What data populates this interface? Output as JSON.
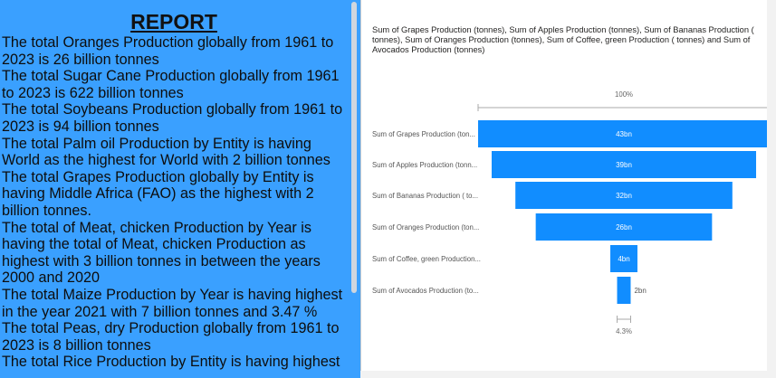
{
  "report": {
    "title": "REPORT",
    "paragraphs": [
      "The total Oranges Production globally from 1961 to 2023 is 26 billion tonnes",
      "The total Sugar Cane Production globally from 1961 to 2023 is 622 billion tonnes",
      "The total Soybeans Production globally from 1961 to 2023 is 94 billion tonnes",
      "The total Palm oil Production by Entity is having World as the highest for World with 2 billion tonnes",
      "The total Grapes Production globally by Entity is having Middle Africa (FAO) as the highest with 2 billion tonnes.",
      "The total of Meat, chicken Production by Year is having the total of Meat, chicken Production as highest with 3 billion tonnes in between the years 2000 and 2020",
      "The total Maize Production by Year is having highest in the year 2021 with 7 billion tonnes and 3.47 %",
      "The total Peas, dry Production globally from 1961 to 2023 is 8 billion tonnes",
      "The total Rice Production by Entity is having highest"
    ]
  },
  "chart_data": {
    "type": "funnel",
    "title": "Sum of Grapes Production (tonnes), Sum of Apples Production (tonnes), Sum of Bananas Production ( tonnes), Sum of Oranges Production (tonnes), Sum of Coffee, green Production ( tonnes) and Sum of Avocados Production (tonnes)",
    "categories": [
      "Sum of Grapes Production (ton...",
      "Sum of Apples Production (tonn...",
      "Sum of Bananas Production ( to...",
      "Sum of Oranges Production (ton...",
      "Sum of Coffee, green Production...",
      "Sum of Avocados Production (to..."
    ],
    "values": [
      43,
      39,
      32,
      26,
      4,
      2
    ],
    "value_labels": [
      "43bn",
      "39bn",
      "32bn",
      "26bn",
      "4bn",
      "2bn"
    ],
    "top_percent_label": "100%",
    "bottom_percent_label": "4.3%",
    "bar_color": "#118dff"
  }
}
